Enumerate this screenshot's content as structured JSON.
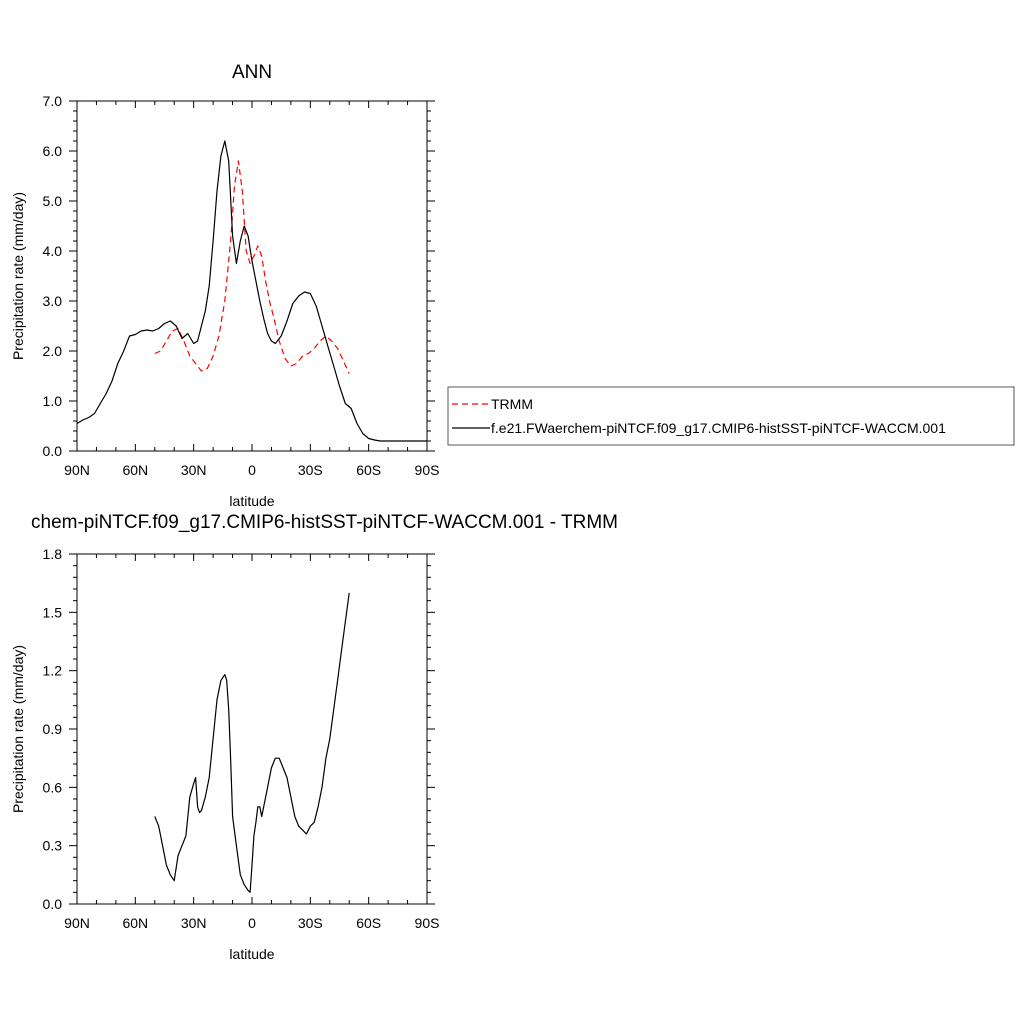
{
  "chart_data": [
    {
      "type": "line",
      "title": "ANN",
      "xlabel": "latitude",
      "ylabel": "Precipitation rate (mm/day)",
      "xlim": [
        90,
        -90
      ],
      "ylim": [
        0,
        7
      ],
      "x_ticks": [
        90,
        60,
        30,
        0,
        -30,
        -60,
        -90
      ],
      "x_tick_labels": [
        "90N",
        "60N",
        "30N",
        "0",
        "30S",
        "60S",
        "90S"
      ],
      "y_ticks": [
        0,
        1,
        2,
        3,
        4,
        5,
        6,
        7
      ],
      "y_tick_labels": [
        "0.0",
        "1.0",
        "2.0",
        "3.0",
        "4.0",
        "5.0",
        "6.0",
        "7.0"
      ],
      "series": [
        {
          "name": "TRMM",
          "color": "#ff0000",
          "dash": "dashed",
          "x": [
            50,
            47,
            44,
            41,
            38,
            35,
            32,
            29,
            26,
            23,
            20,
            17,
            14,
            11,
            9,
            7,
            5,
            3,
            1,
            -1,
            -3,
            -5,
            -7,
            -9,
            -11,
            -14,
            -17,
            -20,
            -23,
            -26,
            -29,
            -32,
            -35,
            -38,
            -41,
            -44,
            -47,
            -50
          ],
          "y": [
            1.95,
            2.0,
            2.2,
            2.4,
            2.45,
            2.2,
            1.9,
            1.75,
            1.6,
            1.65,
            1.9,
            2.3,
            3.0,
            4.2,
            5.3,
            5.8,
            5.2,
            4.0,
            3.75,
            3.9,
            4.1,
            3.9,
            3.4,
            3.0,
            2.7,
            2.2,
            1.85,
            1.7,
            1.75,
            1.9,
            1.95,
            2.05,
            2.2,
            2.3,
            2.2,
            2.05,
            1.8,
            1.55
          ]
        },
        {
          "name": "f.e21.FWaerchem-piNTCF.f09_g17.CMIP6-histSST-piNTCF-WACCM.001",
          "color": "#000000",
          "dash": "solid",
          "x": [
            90,
            87,
            84,
            81,
            78,
            75,
            72,
            69,
            66,
            63,
            60,
            57,
            54,
            51,
            48,
            45,
            42,
            39,
            36,
            33,
            30,
            28,
            26,
            24,
            22,
            20,
            18,
            16,
            14,
            12,
            10,
            8,
            6,
            4,
            2,
            0,
            -2,
            -4,
            -6,
            -8,
            -10,
            -12,
            -15,
            -18,
            -21,
            -24,
            -27,
            -30,
            -33,
            -36,
            -39,
            -42,
            -45,
            -48,
            -51,
            -54,
            -57,
            -60,
            -63,
            -66,
            -69,
            -72,
            -75,
            -78,
            -81,
            -84,
            -87,
            -90
          ],
          "y": [
            0.55,
            0.62,
            0.67,
            0.75,
            0.95,
            1.15,
            1.4,
            1.75,
            2.0,
            2.3,
            2.33,
            2.4,
            2.42,
            2.4,
            2.45,
            2.55,
            2.6,
            2.5,
            2.25,
            2.35,
            2.15,
            2.2,
            2.5,
            2.8,
            3.3,
            4.2,
            5.2,
            5.9,
            6.2,
            5.8,
            4.3,
            3.75,
            4.2,
            4.5,
            4.3,
            3.8,
            3.4,
            3.0,
            2.65,
            2.35,
            2.2,
            2.15,
            2.3,
            2.6,
            2.95,
            3.1,
            3.18,
            3.15,
            2.9,
            2.5,
            2.1,
            1.7,
            1.3,
            0.95,
            0.85,
            0.55,
            0.35,
            0.25,
            0.22,
            0.2,
            0.2,
            0.2,
            0.2,
            0.2,
            0.2,
            0.2,
            0.2,
            0.2
          ]
        }
      ]
    },
    {
      "type": "line",
      "title": "chem-piNTCF.f09_g17.CMIP6-histSST-piNTCF-WACCM.001 - TRMM",
      "xlabel": "latitude",
      "ylabel": "Precipitation rate (mm/day)",
      "xlim": [
        90,
        -90
      ],
      "ylim": [
        0,
        1.8
      ],
      "x_ticks": [
        90,
        60,
        30,
        0,
        -30,
        -60,
        -90
      ],
      "x_tick_labels": [
        "90N",
        "60N",
        "30N",
        "0",
        "30S",
        "60S",
        "90S"
      ],
      "y_ticks": [
        0,
        0.3,
        0.6,
        0.9,
        1.2,
        1.5,
        1.8
      ],
      "y_tick_labels": [
        "0.0",
        "0.3",
        "0.6",
        "0.9",
        "1.2",
        "1.5",
        "1.8"
      ],
      "series": [
        {
          "color": "#000000",
          "dash": "solid",
          "x": [
            50,
            48,
            46,
            44,
            42,
            40,
            38,
            36,
            34,
            32,
            30,
            29,
            28,
            27,
            26,
            24,
            22,
            20,
            18,
            16,
            14,
            13,
            12,
            11,
            10,
            8,
            6,
            4,
            2,
            1,
            0,
            -1,
            -2,
            -3,
            -4,
            -5,
            -6,
            -8,
            -10,
            -12,
            -14,
            -16,
            -18,
            -20,
            -22,
            -24,
            -26,
            -28,
            -30,
            -32,
            -34,
            -36,
            -38,
            -40,
            -42,
            -44,
            -46,
            -48,
            -50
          ],
          "y": [
            0.45,
            0.4,
            0.3,
            0.2,
            0.15,
            0.12,
            0.25,
            0.3,
            0.35,
            0.55,
            0.62,
            0.65,
            0.5,
            0.47,
            0.48,
            0.55,
            0.65,
            0.85,
            1.05,
            1.15,
            1.18,
            1.15,
            1.0,
            0.75,
            0.45,
            0.3,
            0.15,
            0.1,
            0.07,
            0.06,
            0.2,
            0.35,
            0.42,
            0.5,
            0.5,
            0.45,
            0.5,
            0.6,
            0.7,
            0.75,
            0.75,
            0.7,
            0.65,
            0.55,
            0.45,
            0.4,
            0.38,
            0.36,
            0.4,
            0.42,
            0.5,
            0.6,
            0.75,
            0.85,
            1.0,
            1.15,
            1.3,
            1.45,
            1.6
          ]
        }
      ]
    }
  ]
}
